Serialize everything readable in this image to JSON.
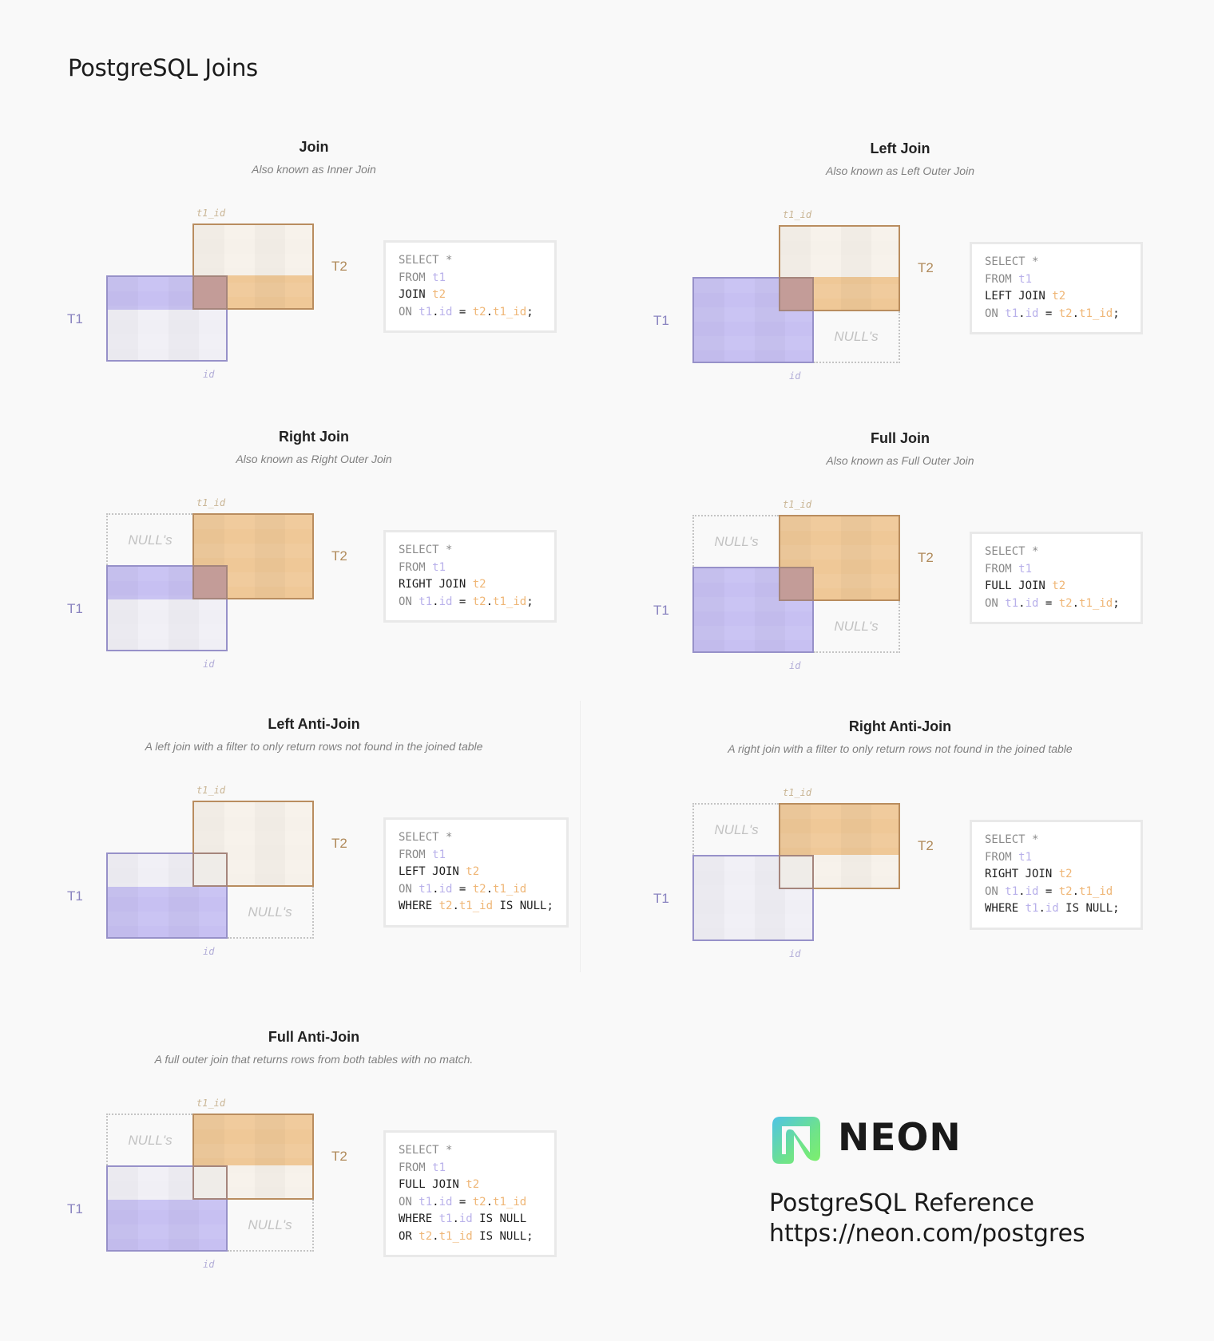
{
  "page_title": "PostgreSQL Joins",
  "labels": {
    "t1": "T1",
    "t2": "T2",
    "t1_id": "t1_id",
    "id": "id",
    "nulls": "NULL's"
  },
  "colors": {
    "t1_fill": "#c7c0f2",
    "t2_fill": "#efc897",
    "t1_border": "#9791c9",
    "t2_border": "#b98d5f",
    "t1_code": "#b8b0ea",
    "t2_code": "#efb676"
  },
  "panels": [
    {
      "title": "Join",
      "subtitle": "Also known as Inner Join",
      "fill": {
        "t1_top": true,
        "t1_bottom": false,
        "t2_top": false,
        "t2_bottom": true
      },
      "null_left": false,
      "null_right": false,
      "sql": [
        [
          {
            "t": "SELECT *",
            "c": "gray"
          }
        ],
        [
          {
            "t": "FROM ",
            "c": "gray"
          },
          {
            "t": "t1",
            "c": "t1"
          }
        ],
        [
          {
            "t": "JOIN ",
            "c": "dark"
          },
          {
            "t": "t2",
            "c": "t2"
          }
        ],
        [
          {
            "t": "ON ",
            "c": "gray"
          },
          {
            "t": "t1",
            "c": "t1"
          },
          {
            "t": ".",
            "c": "dark"
          },
          {
            "t": "id",
            "c": "t1"
          },
          {
            "t": " = ",
            "c": "dark"
          },
          {
            "t": "t2",
            "c": "t2"
          },
          {
            "t": ".",
            "c": "dark"
          },
          {
            "t": "t1_id",
            "c": "t2"
          },
          {
            "t": ";",
            "c": "dark"
          }
        ]
      ]
    },
    {
      "title": "Left Join",
      "subtitle": "Also known as Left Outer Join",
      "fill": {
        "t1_top": true,
        "t1_bottom": true,
        "t2_top": false,
        "t2_bottom": true
      },
      "null_left": false,
      "null_right": true,
      "sql": [
        [
          {
            "t": "SELECT *",
            "c": "gray"
          }
        ],
        [
          {
            "t": "FROM ",
            "c": "gray"
          },
          {
            "t": "t1",
            "c": "t1"
          }
        ],
        [
          {
            "t": "LEFT JOIN ",
            "c": "dark"
          },
          {
            "t": "t2",
            "c": "t2"
          }
        ],
        [
          {
            "t": "ON ",
            "c": "gray"
          },
          {
            "t": "t1",
            "c": "t1"
          },
          {
            "t": ".",
            "c": "dark"
          },
          {
            "t": "id",
            "c": "t1"
          },
          {
            "t": " = ",
            "c": "dark"
          },
          {
            "t": "t2",
            "c": "t2"
          },
          {
            "t": ".",
            "c": "dark"
          },
          {
            "t": "t1_id",
            "c": "t2"
          },
          {
            "t": ";",
            "c": "dark"
          }
        ]
      ]
    },
    {
      "title": "Right Join",
      "subtitle": "Also known as Right Outer Join",
      "fill": {
        "t1_top": true,
        "t1_bottom": false,
        "t2_top": true,
        "t2_bottom": true
      },
      "null_left": true,
      "null_right": false,
      "sql": [
        [
          {
            "t": "SELECT *",
            "c": "gray"
          }
        ],
        [
          {
            "t": "FROM ",
            "c": "gray"
          },
          {
            "t": "t1",
            "c": "t1"
          }
        ],
        [
          {
            "t": "RIGHT JOIN ",
            "c": "dark"
          },
          {
            "t": "t2",
            "c": "t2"
          }
        ],
        [
          {
            "t": "ON ",
            "c": "gray"
          },
          {
            "t": "t1",
            "c": "t1"
          },
          {
            "t": ".",
            "c": "dark"
          },
          {
            "t": "id",
            "c": "t1"
          },
          {
            "t": " = ",
            "c": "dark"
          },
          {
            "t": "t2",
            "c": "t2"
          },
          {
            "t": ".",
            "c": "dark"
          },
          {
            "t": "t1_id",
            "c": "t2"
          },
          {
            "t": ";",
            "c": "dark"
          }
        ]
      ]
    },
    {
      "title": "Full Join",
      "subtitle": "Also known as Full Outer Join",
      "fill": {
        "t1_top": true,
        "t1_bottom": true,
        "t2_top": true,
        "t2_bottom": true
      },
      "null_left": true,
      "null_right": true,
      "sql": [
        [
          {
            "t": "SELECT *",
            "c": "gray"
          }
        ],
        [
          {
            "t": "FROM ",
            "c": "gray"
          },
          {
            "t": "t1",
            "c": "t1"
          }
        ],
        [
          {
            "t": "FULL JOIN ",
            "c": "dark"
          },
          {
            "t": "t2",
            "c": "t2"
          }
        ],
        [
          {
            "t": "ON ",
            "c": "gray"
          },
          {
            "t": "t1",
            "c": "t1"
          },
          {
            "t": ".",
            "c": "dark"
          },
          {
            "t": "id",
            "c": "t1"
          },
          {
            "t": " = ",
            "c": "dark"
          },
          {
            "t": "t2",
            "c": "t2"
          },
          {
            "t": ".",
            "c": "dark"
          },
          {
            "t": "t1_id",
            "c": "t2"
          },
          {
            "t": ";",
            "c": "dark"
          }
        ]
      ]
    },
    {
      "title": "Left Anti-Join",
      "subtitle": "A left join with a filter to only return rows not found in the joined table",
      "fill": {
        "t1_top": false,
        "t1_bottom": true,
        "t2_top": false,
        "t2_bottom": false
      },
      "null_left": false,
      "null_right": true,
      "sql": [
        [
          {
            "t": "SELECT *",
            "c": "gray"
          }
        ],
        [
          {
            "t": "FROM ",
            "c": "gray"
          },
          {
            "t": "t1",
            "c": "t1"
          }
        ],
        [
          {
            "t": "LEFT JOIN ",
            "c": "dark"
          },
          {
            "t": "t2",
            "c": "t2"
          }
        ],
        [
          {
            "t": "ON ",
            "c": "gray"
          },
          {
            "t": "t1",
            "c": "t1"
          },
          {
            "t": ".",
            "c": "dark"
          },
          {
            "t": "id",
            "c": "t1"
          },
          {
            "t": " = ",
            "c": "dark"
          },
          {
            "t": "t2",
            "c": "t2"
          },
          {
            "t": ".",
            "c": "dark"
          },
          {
            "t": "t1_id",
            "c": "t2"
          }
        ],
        [
          {
            "t": "WHERE ",
            "c": "dark"
          },
          {
            "t": "t2",
            "c": "t2"
          },
          {
            "t": ".",
            "c": "dark"
          },
          {
            "t": "t1_id",
            "c": "t2"
          },
          {
            "t": " IS NULL;",
            "c": "dark"
          }
        ]
      ]
    },
    {
      "title": "Right Anti-Join",
      "subtitle": "A right join with a filter to only return rows not found in the joined table",
      "fill": {
        "t1_top": false,
        "t1_bottom": false,
        "t2_top": true,
        "t2_bottom": false
      },
      "null_left": true,
      "null_right": false,
      "sql": [
        [
          {
            "t": "SELECT *",
            "c": "gray"
          }
        ],
        [
          {
            "t": "FROM ",
            "c": "gray"
          },
          {
            "t": "t1",
            "c": "t1"
          }
        ],
        [
          {
            "t": "RIGHT JOIN ",
            "c": "dark"
          },
          {
            "t": "t2",
            "c": "t2"
          }
        ],
        [
          {
            "t": "ON ",
            "c": "gray"
          },
          {
            "t": "t1",
            "c": "t1"
          },
          {
            "t": ".",
            "c": "dark"
          },
          {
            "t": "id",
            "c": "t1"
          },
          {
            "t": " = ",
            "c": "dark"
          },
          {
            "t": "t2",
            "c": "t2"
          },
          {
            "t": ".",
            "c": "dark"
          },
          {
            "t": "t1_id",
            "c": "t2"
          }
        ],
        [
          {
            "t": "WHERE ",
            "c": "dark"
          },
          {
            "t": "t1",
            "c": "t1"
          },
          {
            "t": ".",
            "c": "dark"
          },
          {
            "t": "id",
            "c": "t1"
          },
          {
            "t": " IS NULL;",
            "c": "dark"
          }
        ]
      ]
    },
    {
      "title": "Full Anti-Join",
      "subtitle": "A full outer join that returns rows from both tables with no match.",
      "fill": {
        "t1_top": false,
        "t1_bottom": true,
        "t2_top": true,
        "t2_bottom": false
      },
      "null_left": true,
      "null_right": true,
      "sql": [
        [
          {
            "t": "SELECT *",
            "c": "gray"
          }
        ],
        [
          {
            "t": "FROM ",
            "c": "gray"
          },
          {
            "t": "t1",
            "c": "t1"
          }
        ],
        [
          {
            "t": "FULL JOIN ",
            "c": "dark"
          },
          {
            "t": "t2",
            "c": "t2"
          }
        ],
        [
          {
            "t": "ON ",
            "c": "gray"
          },
          {
            "t": "t1",
            "c": "t1"
          },
          {
            "t": ".",
            "c": "dark"
          },
          {
            "t": "id",
            "c": "t1"
          },
          {
            "t": " = ",
            "c": "dark"
          },
          {
            "t": "t2",
            "c": "t2"
          },
          {
            "t": ".",
            "c": "dark"
          },
          {
            "t": "t1_id",
            "c": "t2"
          }
        ],
        [
          {
            "t": "WHERE ",
            "c": "dark"
          },
          {
            "t": "t1",
            "c": "t1"
          },
          {
            "t": ".",
            "c": "dark"
          },
          {
            "t": "id",
            "c": "t1"
          },
          {
            "t": " IS NULL",
            "c": "dark"
          }
        ],
        [
          {
            "t": "OR ",
            "c": "dark"
          },
          {
            "t": "t2",
            "c": "t2"
          },
          {
            "t": ".",
            "c": "dark"
          },
          {
            "t": "t1_id",
            "c": "t2"
          },
          {
            "t": " IS NULL;",
            "c": "dark"
          }
        ]
      ]
    }
  ],
  "footer": {
    "brand": "NEON",
    "reference": "PostgreSQL Reference",
    "url": "https://neon.com/postgres"
  }
}
